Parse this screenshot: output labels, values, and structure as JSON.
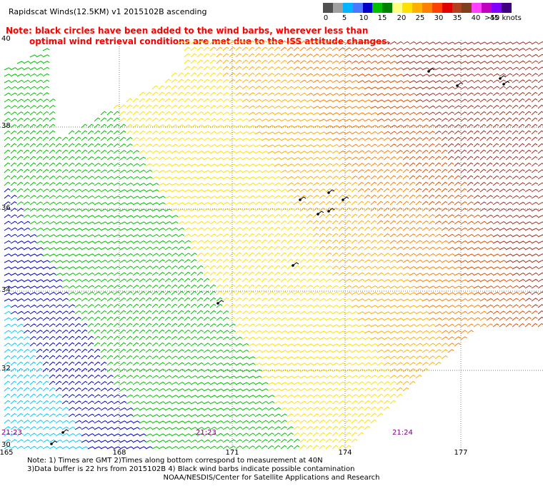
{
  "title": "Rapidscat Winds(12.5KM) v1 2015102B ascending",
  "note": {
    "line1": "Note: black circles have been added to the wind barbs, wherever less than",
    "line2": "optimal wind retrieval conditions are met due to the ISS attitude changes."
  },
  "legend": {
    "labels": [
      "0",
      "5",
      "10",
      "15",
      "20",
      "25",
      "30",
      "35",
      "40",
      "45",
      ">50 knots"
    ],
    "colors": [
      "#505050",
      "#a0a0a0",
      "#00b4ff",
      "#4c78ff",
      "#0000c8",
      "#00c000",
      "#008000",
      "#ffff80",
      "#ffe000",
      "#ffb000",
      "#ff8000",
      "#ff4000",
      "#e00000",
      "#b04020",
      "#804020",
      "#ff40ff",
      "#c000c0",
      "#8000ff",
      "#400080"
    ]
  },
  "axes": {
    "lat_labels": [
      "40",
      "38",
      "36",
      "34",
      "32",
      "30"
    ],
    "lon_labels": [
      "165",
      "168",
      "171",
      "174",
      "177"
    ]
  },
  "times": [
    "21:23",
    "21:23",
    "21:24"
  ],
  "footer": {
    "line1": "Note: 1) Times are GMT 2)Times along bottom correspond to measurement at 40N",
    "line2": "3)Data buffer is 22 hrs from 2015102B 4) Black wind barbs indicate possible contamination",
    "line3": "NOAA/NESDIS/Center for Satellite Applications and Research"
  },
  "wind_field": {
    "region": "swath",
    "speed_scale_knots": [
      0,
      50
    ],
    "field_colors": [
      "#00c8ff",
      "#0000c8",
      "#00c000",
      "#ffe000",
      "#ffb000",
      "#ff8000",
      "#e05000",
      "#a03020"
    ]
  }
}
